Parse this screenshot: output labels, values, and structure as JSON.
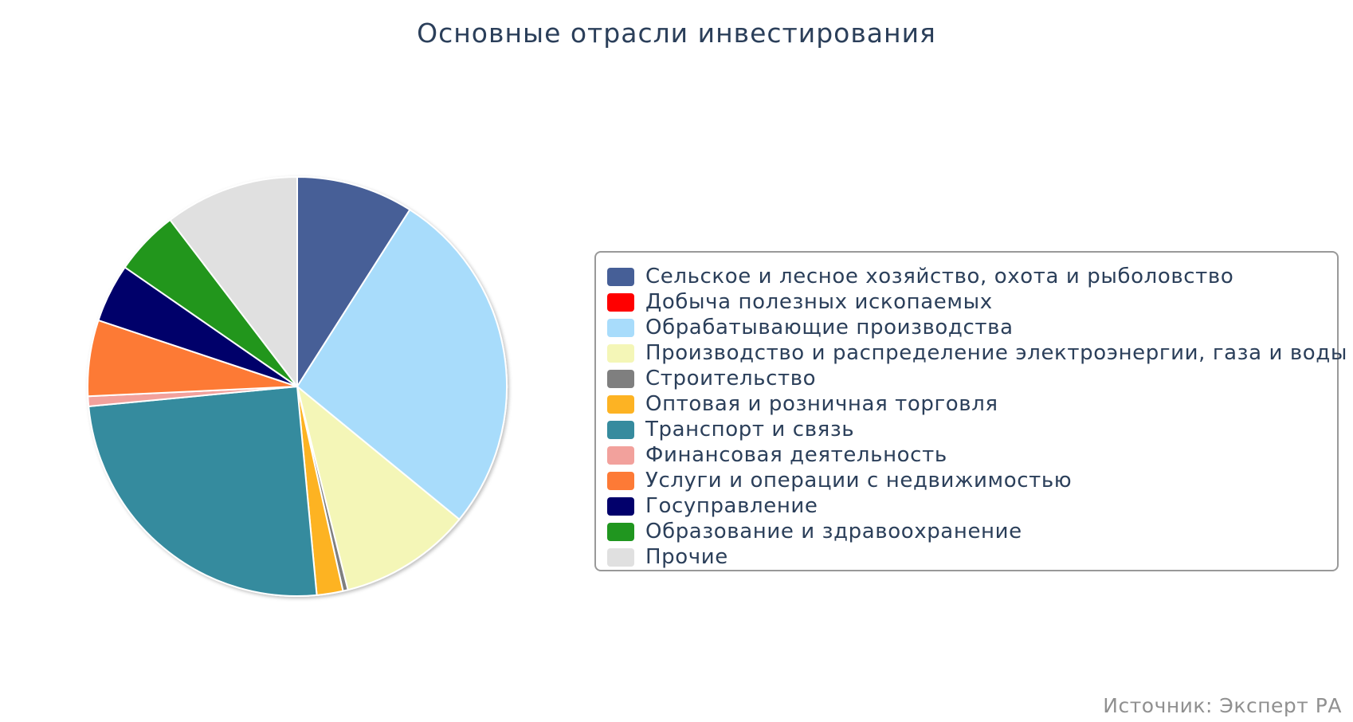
{
  "chart_data": {
    "type": "pie",
    "title": "Основные отрасли инвестирования",
    "credit": "Источник: Эксперт РА",
    "legend_position": "right",
    "slices": [
      {
        "label": "Сельское и лесное хозяйство, охота и рыболовство",
        "value": 9.4,
        "color": "#465f97"
      },
      {
        "label": "Добыча полезных ископаемых",
        "value": 0.0,
        "color": "#ff0000"
      },
      {
        "label": "Обрабатывающие производства",
        "value": 28.0,
        "color": "#a8dcfb"
      },
      {
        "label": "Производство и распределение электроэнергии, газа и воды",
        "value": 10.6,
        "color": "#f4f6b7"
      },
      {
        "label": "Строительство",
        "value": 0.4,
        "color": "#7f7f7f"
      },
      {
        "label": "Оптовая и розничная торговля",
        "value": 2.1,
        "color": "#fdb323"
      },
      {
        "label": "Транспорт и связь",
        "value": 26.0,
        "color": "#368b9e"
      },
      {
        "label": "Финансовая деятельность",
        "value": 0.8,
        "color": "#f2a19c"
      },
      {
        "label": "Услуги и операции с недвижимостью",
        "value": 6.1,
        "color": "#fd7a36"
      },
      {
        "label": "Госуправление",
        "value": 4.7,
        "color": "#02006b"
      },
      {
        "label": "Образование и здравоохранение",
        "value": 5.2,
        "color": "#20961f"
      },
      {
        "label": "Прочие",
        "value": 10.8,
        "color": "#e0e0e0"
      }
    ]
  }
}
